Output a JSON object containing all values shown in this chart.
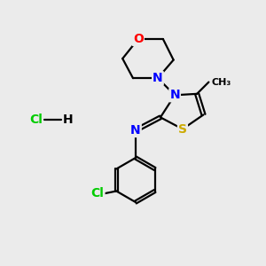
{
  "bg_color": "#ebebeb",
  "fig_size": [
    3.0,
    3.0
  ],
  "dpi": 100,
  "atom_colors": {
    "C": "#000000",
    "N": "#0000ff",
    "O": "#ff0000",
    "S": "#ccaa00",
    "Cl": "#00cc00",
    "H": "#000000"
  },
  "bond_color": "#000000",
  "bond_width": 1.6,
  "font_size_atom": 10,
  "font_size_methyl": 8
}
